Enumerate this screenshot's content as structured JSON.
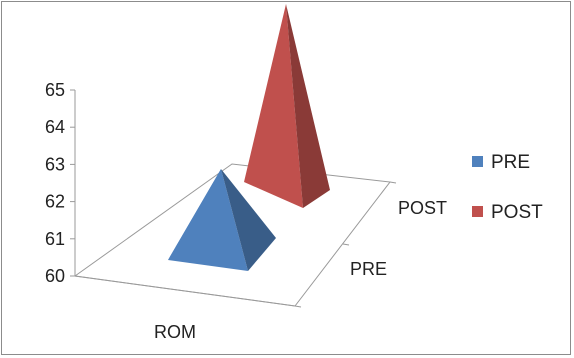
{
  "chart_data": {
    "type": "bar",
    "subtype": "3d-pyramid",
    "title": "",
    "xlabel": "",
    "ylabel": "",
    "categories": [
      "ROM"
    ],
    "depth_categories": [
      "PRE",
      "POST"
    ],
    "ylim": [
      60,
      65
    ],
    "yticks": [
      "60",
      "61",
      "62",
      "63",
      "64",
      "65"
    ],
    "series": [
      {
        "name": "PRE",
        "values": [
          62.5
        ],
        "color": "#4F81BD"
      },
      {
        "name": "POST",
        "values": [
          65
        ],
        "color": "#C0504D"
      }
    ],
    "legend": {
      "placement": "right",
      "items": [
        {
          "label": "PRE",
          "color": "#4F81BD"
        },
        {
          "label": "POST",
          "color": "#C0504D"
        }
      ]
    },
    "grid": false
  }
}
